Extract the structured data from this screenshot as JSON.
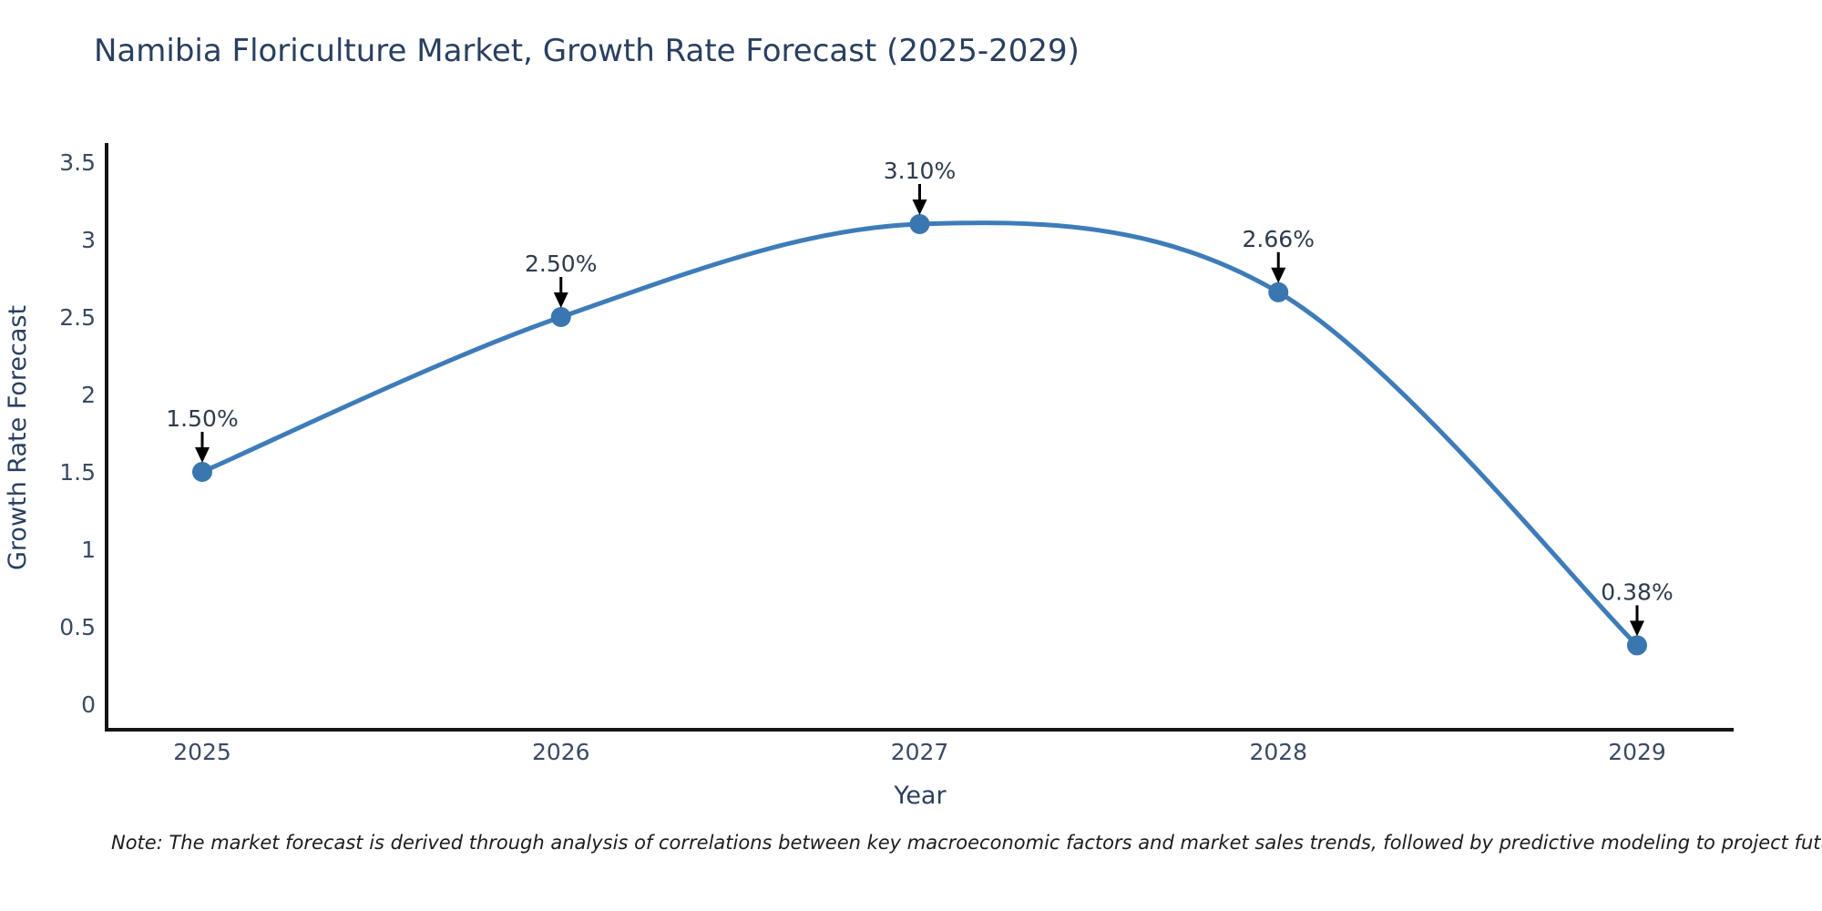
{
  "title": "Namibia Floriculture Market, Growth Rate Forecast (2025-2029)",
  "note": "Note: The market forecast is derived through analysis of correlations between key macroeconomic factors and market sales trends, followed by predictive modeling to project future sales",
  "colors": {
    "line": "#3e7cb9",
    "marker": "#3a76b0",
    "axis": "#141414",
    "title_text": "#2a3f5f",
    "tick_text": "#3b4a63",
    "annotation_text": "#2f3b4c",
    "arrow": "#000000",
    "background": "#ffffff"
  },
  "chart_data": {
    "type": "line",
    "title": "Namibia Floriculture Market, Growth Rate Forecast (2025-2029)",
    "xlabel": "Year",
    "ylabel": "Growth Rate Forecast",
    "x": [
      2025,
      2026,
      2027,
      2028,
      2029
    ],
    "values": [
      1.5,
      2.5,
      3.1,
      2.66,
      0.38
    ],
    "point_labels": [
      "1.50%",
      "2.50%",
      "3.10%",
      "2.66%",
      "0.38%"
    ],
    "y_ticks": [
      0,
      0.5,
      1,
      1.5,
      2,
      2.5,
      3,
      3.5
    ],
    "ylim": [
      -0.18,
      3.62
    ],
    "line_shape": "spline",
    "grid": false,
    "legend_position": "none",
    "annotation_style": "value-above-with-down-arrow"
  }
}
